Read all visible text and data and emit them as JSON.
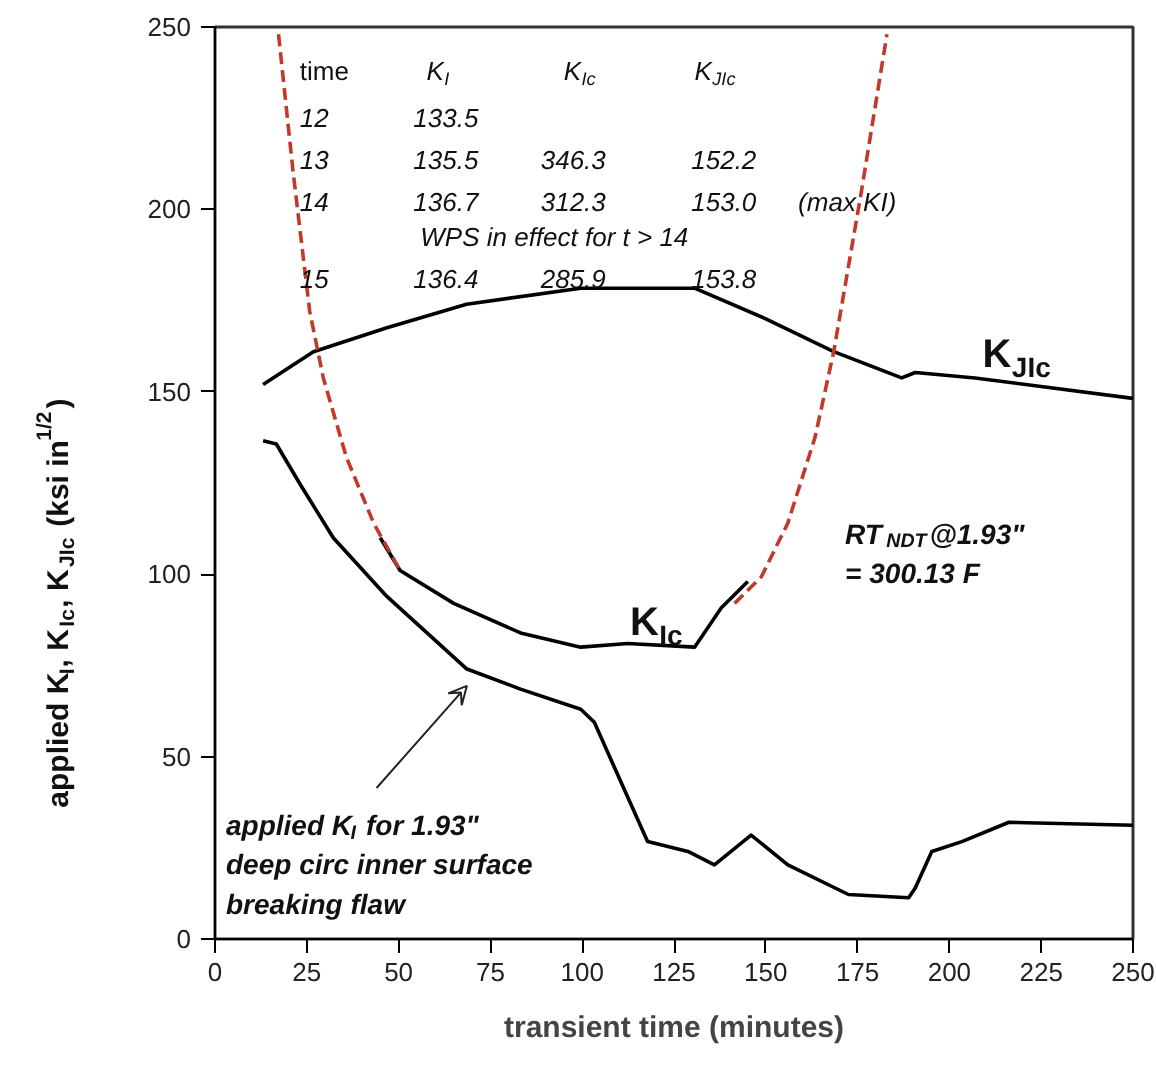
{
  "chart_data": {
    "type": "line",
    "xlabel": "transient time (minutes)",
    "ylabel": "applied K$_{I}$, K$_{Ic}$, K$_{JIc}$ (ksi in$^{1/2}$)",
    "xlim": [
      0,
      250
    ],
    "ylim": [
      0,
      250
    ],
    "xticks": [
      0,
      25,
      50,
      75,
      100,
      125,
      150,
      175,
      200,
      225,
      250
    ],
    "yticks": [
      0,
      50,
      100,
      150,
      200,
      250
    ],
    "grid": false,
    "series": [
      {
        "color": "#000000",
        "line_style": "solid",
        "x": [
          13.1,
          16.7,
          23.1,
          32.2,
          46.8,
          68.6,
          83.2,
          99.6,
          103.3,
          117.8,
          128.8,
          136,
          146,
          156,
          172.5,
          188.9,
          190.7,
          195.2,
          203.4,
          216.2,
          250
        ],
        "values": [
          136.6,
          135.7,
          124.8,
          110,
          93.9,
          74,
          68.5,
          63,
          59.4,
          26.7,
          24,
          20.3,
          28.5,
          20.3,
          12.2,
          11.3,
          14,
          24,
          26.7,
          32,
          31.2
        ]
      },
      {
        "name": "K$_{Ic}$",
        "color": "#000000",
        "line_style": "solid",
        "x": [
          45,
          50.4,
          65,
          83.2,
          99.6,
          112.4,
          130.6,
          137.9,
          145.1
        ],
        "values": [
          110,
          101,
          92,
          83.9,
          80,
          81,
          80,
          90.8,
          98
        ]
      },
      {
        "name": "K$_{JIc}$",
        "color": "#000000",
        "line_style": "solid",
        "x": [
          13.1,
          26.8,
          46.6,
          68.5,
          99.6,
          130.6,
          150,
          168.5,
          187,
          190.7,
          207,
          250
        ],
        "values": [
          152,
          161,
          167.5,
          174,
          178.4,
          178.4,
          170,
          161,
          153.8,
          155.3,
          153.8,
          148.2
        ]
      },
      {
        "color": "#c0392b",
        "line_style": "dashed",
        "x": [
          17.3,
          21.3,
          25.8,
          29.5,
          35.8,
          43.2,
          50.4,
          95,
          141.5,
          148.8,
          156,
          163.4,
          168.5,
          176,
          183
        ],
        "values": [
          248,
          210,
          172,
          153.8,
          132,
          114,
          101,
          null,
          92,
          99.3,
          114,
          137.5,
          161,
          204.7,
          248
        ]
      }
    ],
    "annotations": [
      "time",
      "K$_{I}$",
      "K$_{Ic}$",
      "K$_{JIc}$",
      "12",
      "133.5",
      "13",
      "135.5",
      "346.3",
      "152.2",
      "14",
      "136.7",
      "312.3",
      "153.0",
      "(max KI)",
      "WPS in effect for t > 14",
      "15",
      "136.4",
      "285.9",
      "153.8",
      "RT$_{NDT}$@1.93\" = 300.13 F",
      "applied K$_{I}$ for 1.93\" deep circ inner surface breaking flaw"
    ]
  }
}
